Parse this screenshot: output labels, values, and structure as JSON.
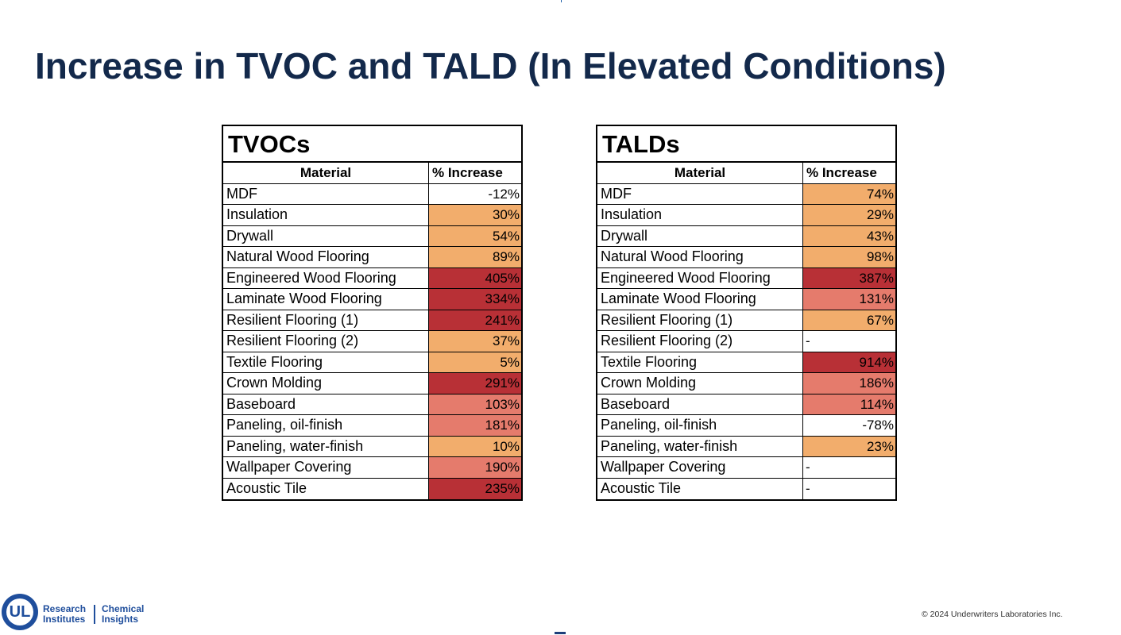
{
  "slide": {
    "title": "Increase in TVOC and TALD (In Elevated Conditions)"
  },
  "tvoc_table": {
    "title": "TVOCs",
    "header": {
      "material": "Material",
      "increase": "% Increase"
    },
    "rows": [
      {
        "material": "MDF",
        "increase": "-12%",
        "level": "none"
      },
      {
        "material": "Insulation",
        "increase": "30%",
        "level": "low"
      },
      {
        "material": "Drywall",
        "increase": "54%",
        "level": "low"
      },
      {
        "material": "Natural Wood Flooring",
        "increase": "89%",
        "level": "low"
      },
      {
        "material": "Engineered Wood Flooring",
        "increase": "405%",
        "level": "high"
      },
      {
        "material": "Laminate Wood Flooring",
        "increase": "334%",
        "level": "high"
      },
      {
        "material": "Resilient Flooring (1)",
        "increase": "241%",
        "level": "high"
      },
      {
        "material": "Resilient Flooring (2)",
        "increase": "37%",
        "level": "low"
      },
      {
        "material": "Textile Flooring",
        "increase": "5%",
        "level": "low"
      },
      {
        "material": "Crown Molding",
        "increase": "291%",
        "level": "high"
      },
      {
        "material": "Baseboard",
        "increase": "103%",
        "level": "mid"
      },
      {
        "material": "Paneling, oil-finish",
        "increase": "181%",
        "level": "mid"
      },
      {
        "material": "Paneling, water-finish",
        "increase": "10%",
        "level": "low"
      },
      {
        "material": "Wallpaper Covering",
        "increase": "190%",
        "level": "mid"
      },
      {
        "material": "Acoustic Tile",
        "increase": "235%",
        "level": "high"
      }
    ]
  },
  "tald_table": {
    "title": "TALDs",
    "header": {
      "material": "Material",
      "increase": "% Increase"
    },
    "rows": [
      {
        "material": "MDF",
        "increase": "74%",
        "level": "low"
      },
      {
        "material": "Insulation",
        "increase": "29%",
        "level": "low"
      },
      {
        "material": "Drywall",
        "increase": "43%",
        "level": "low"
      },
      {
        "material": "Natural Wood Flooring",
        "increase": "98%",
        "level": "low"
      },
      {
        "material": "Engineered Wood Flooring",
        "increase": "387%",
        "level": "high"
      },
      {
        "material": "Laminate Wood Flooring",
        "increase": "131%",
        "level": "mid"
      },
      {
        "material": "Resilient Flooring (1)",
        "increase": "67%",
        "level": "low"
      },
      {
        "material": "Resilient Flooring (2)",
        "increase": "-",
        "level": "none"
      },
      {
        "material": "Textile Flooring",
        "increase": "914%",
        "level": "high"
      },
      {
        "material": "Crown Molding",
        "increase": "186%",
        "level": "mid"
      },
      {
        "material": "Baseboard",
        "increase": "114%",
        "level": "mid"
      },
      {
        "material": "Paneling, oil-finish",
        "increase": "-78%",
        "level": "none"
      },
      {
        "material": "Paneling, water-finish",
        "increase": "23%",
        "level": "low"
      },
      {
        "material": "Wallpaper Covering",
        "increase": "-",
        "level": "none"
      },
      {
        "material": "Acoustic Tile",
        "increase": "-",
        "level": "none"
      }
    ]
  },
  "colors": {
    "title": "#13294b",
    "heat_low": "#f2ad6c",
    "heat_mid": "#e57b6c",
    "heat_high": "#b83036",
    "brand_blue": "#1f4e9c"
  },
  "footer": {
    "logo_mark": "UL",
    "org_left_line1": "Research",
    "org_left_line2": "Institutes",
    "org_right_line1": "Chemical",
    "org_right_line2": "Insights",
    "copyright": "© 2024 Underwriters Laboratories Inc."
  }
}
